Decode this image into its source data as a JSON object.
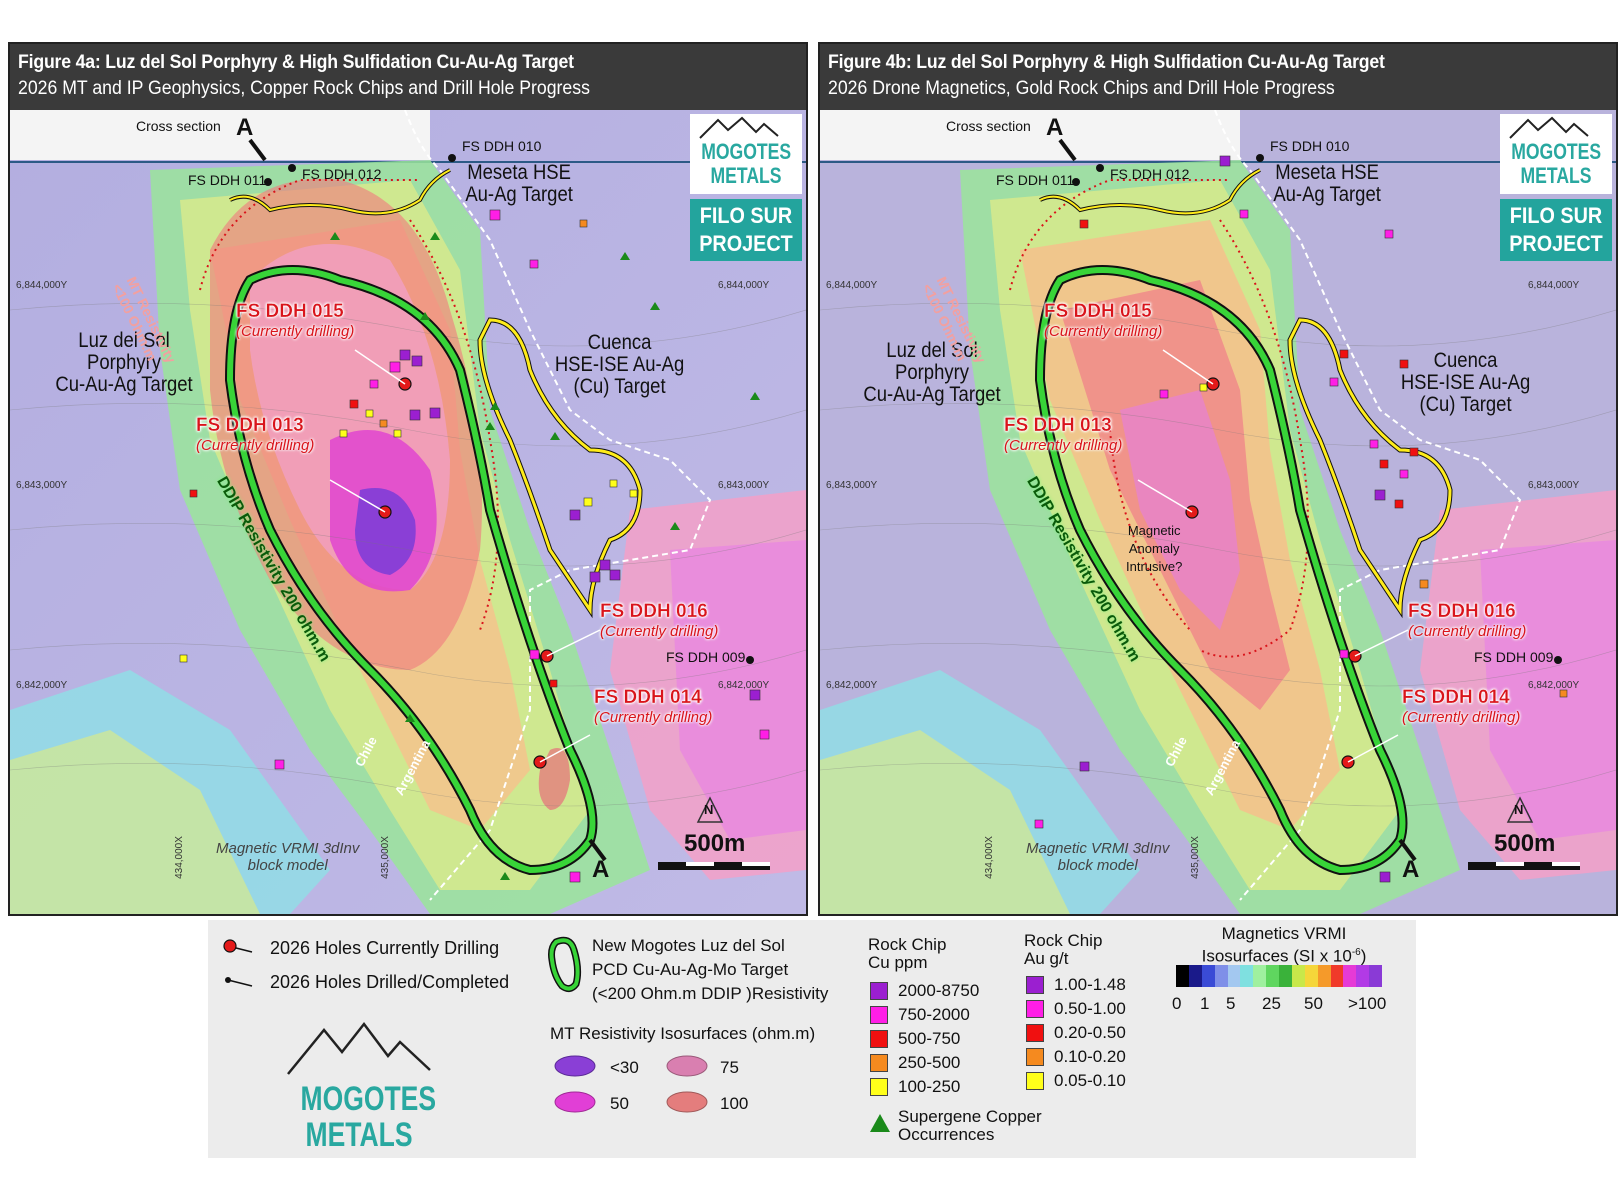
{
  "panels": [
    {
      "id": "a",
      "title": "Figure 4a: Luz del Sol Porphyry & High Sulfidation Cu-Au-Ag Target",
      "subtitle": "2026 MT and IP Geophysics, Copper Rock Chips and Drill Hole Progress"
    },
    {
      "id": "b",
      "title": "Figure 4b: Luz del Sol Porphyry & High Sulfidation Cu-Au-Ag Target",
      "subtitle": "2026 Drone Magnetics, Gold Rock Chips and Drill Hole Progress"
    }
  ],
  "map_labels": {
    "cross_section": "Cross section",
    "section_a": "A",
    "section_a_prime": "A",
    "fs_ddh_010": "FS DDH 010",
    "fs_ddh_011": "FS DDH 011",
    "fs_ddh_012": "FS DDH 012",
    "fs_ddh_009": "FS DDH 009",
    "meseta_1": "Meseta HSE",
    "meseta_2": "Au-Ag Target",
    "luz_1": "Luz del Sol",
    "luz_2": "Porphyry",
    "luz_3": "Cu-Au-Ag Target",
    "cuenca_1": "Cuenca",
    "cuenca_2": "HSE-ISE Au-Ag",
    "cuenca_3": "(Cu) Target",
    "mt_res_1": "MT Resistivity",
    "mt_res_2": "<100 Ohm.m",
    "ddip": "DDIP Resistivity 200 ohm.m",
    "chile": "Chile",
    "argentina": "Argentina",
    "block_1": "Magnetic VRMI 3dInv",
    "block_2": "block model",
    "north": "N",
    "scale": "500m",
    "mag_anom_1": "Magnetic",
    "mag_anom_2": "Anomaly",
    "mag_anom_3": "Intrusive?",
    "coord_y1": "6,844,000Y",
    "coord_y2": "6,843,000Y",
    "coord_y3": "6,842,000Y",
    "coord_x1": "434,000X",
    "coord_x2": "435,000X"
  },
  "drill_holes": [
    {
      "name": "FS DDH 015",
      "status": "(Currently drilling)"
    },
    {
      "name": "FS DDH 013",
      "status": "(Currently drilling)"
    },
    {
      "name": "FS DDH 016",
      "status": "(Currently drilling)"
    },
    {
      "name": "FS DDH 014",
      "status": "(Currently drilling)"
    }
  ],
  "logo": {
    "line1": "MOGOTES",
    "line2": "METALS",
    "project1": "FILO SUR",
    "project2": "PROJECT"
  },
  "legend": {
    "holes_drilling": "2026 Holes Currently Drilling",
    "holes_completed": "2026 Holes Drilled/Completed",
    "target_1": "New Mogotes Luz del Sol",
    "target_2": "PCD Cu-Au-Ag-Mo Target",
    "target_3": "(<200 Ohm.m DDIP )Resistivity",
    "mt_title": "MT Resistivity Isosurfaces (ohm.m)",
    "mt_items": [
      {
        "label": "<30",
        "color": "#8a3fd6"
      },
      {
        "label": "75",
        "color": "#d97fb0"
      },
      {
        "label": "50",
        "color": "#e13fd6"
      },
      {
        "label": "100",
        "color": "#e47d7d"
      }
    ],
    "cu_title_1": "Rock Chip",
    "cu_title_2": "Cu ppm",
    "cu_items": [
      {
        "label": "2000-8750",
        "color": "#9b1fd0"
      },
      {
        "label": "750-2000",
        "color": "#ff1ee6"
      },
      {
        "label": "500-750",
        "color": "#f01010"
      },
      {
        "label": "250-500",
        "color": "#f58a1f"
      },
      {
        "label": "100-250",
        "color": "#ffff1a"
      }
    ],
    "au_title_1": "Rock Chip",
    "au_title_2": "Au g/t",
    "au_items": [
      {
        "label": "1.00-1.48",
        "color": "#9b1fd0"
      },
      {
        "label": "0.50-1.00",
        "color": "#ff1ee6"
      },
      {
        "label": "0.20-0.50",
        "color": "#f01010"
      },
      {
        "label": "0.10-0.20",
        "color": "#f58a1f"
      },
      {
        "label": "0.05-0.10",
        "color": "#ffff1a"
      }
    ],
    "supergene_1": "Supergene Copper",
    "supergene_2": "Occurrences",
    "mag_title_1": "Magnetics VRMI",
    "mag_title_2": "Isosurfaces (SI x 10",
    "mag_exp": "-6",
    "mag_close": ")",
    "mag_ticks": [
      "0",
      "1",
      "5",
      "25",
      "50",
      ">100"
    ],
    "mag_colors": [
      "#000000",
      "#1a1a8a",
      "#3a4bd6",
      "#7f8fe8",
      "#a3c8f0",
      "#7fe0e0",
      "#9ff09f",
      "#5fd65f",
      "#3ab23a",
      "#c8e84a",
      "#f5d63a",
      "#f59a2a",
      "#f03a2a",
      "#e63ad6",
      "#b23ae6",
      "#8a3ad6"
    ]
  }
}
